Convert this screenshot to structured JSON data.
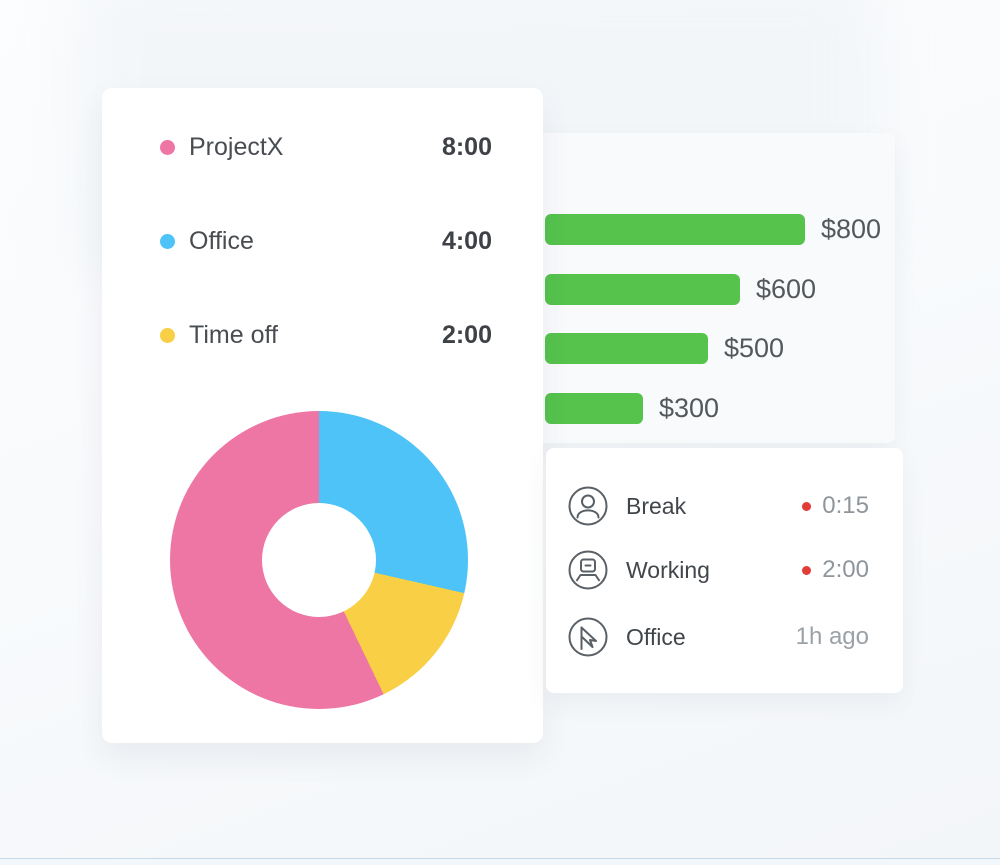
{
  "colors": {
    "pink": "#ee76a4",
    "blue": "#4ec3f7",
    "yellow": "#f8cf45",
    "green": "#56c34d",
    "red_indicator": "#e23c36"
  },
  "timesheet_card": {
    "legend": [
      {
        "label": "ProjectX",
        "value": "8:00",
        "color": "#ee76a4"
      },
      {
        "label": "Office",
        "value": "4:00",
        "color": "#4ec3f7"
      },
      {
        "label": "Time off",
        "value": "2:00",
        "color": "#f8cf45"
      }
    ]
  },
  "chart_data": [
    {
      "type": "pie",
      "subtype": "donut",
      "labels": [
        "Office",
        "Time off",
        "ProjectX"
      ],
      "values": [
        4,
        2,
        8
      ],
      "unit": "hours",
      "colors": [
        "#4ec3f7",
        "#f8cf45",
        "#ee76a4"
      ],
      "start_angle_deg": 0,
      "direction": "clockwise",
      "inner_radius_ratio": 0.38,
      "legend_position": "top"
    },
    {
      "type": "bar",
      "orientation": "horizontal",
      "values": [
        800,
        600,
        500,
        300
      ],
      "data_labels": [
        "$800",
        "$600",
        "$500",
        "$300"
      ],
      "bar_color": "#56c34d",
      "xlim": [
        0,
        800
      ],
      "grid": false,
      "axis_labels_visible": false
    }
  ],
  "activity_card": {
    "indicator_color": "#e23c36",
    "items": [
      {
        "icon": "user-icon",
        "label": "Break",
        "indicator": true,
        "value": "0:15",
        "value_color": "#8e959b"
      },
      {
        "icon": "workstation-icon",
        "label": "Working",
        "indicator": true,
        "value": "2:00",
        "value_color": "#8e959b"
      },
      {
        "icon": "flag-icon",
        "label": "Office",
        "indicator": false,
        "value": "1h ago",
        "value_color": "#9aa1a7"
      }
    ]
  }
}
